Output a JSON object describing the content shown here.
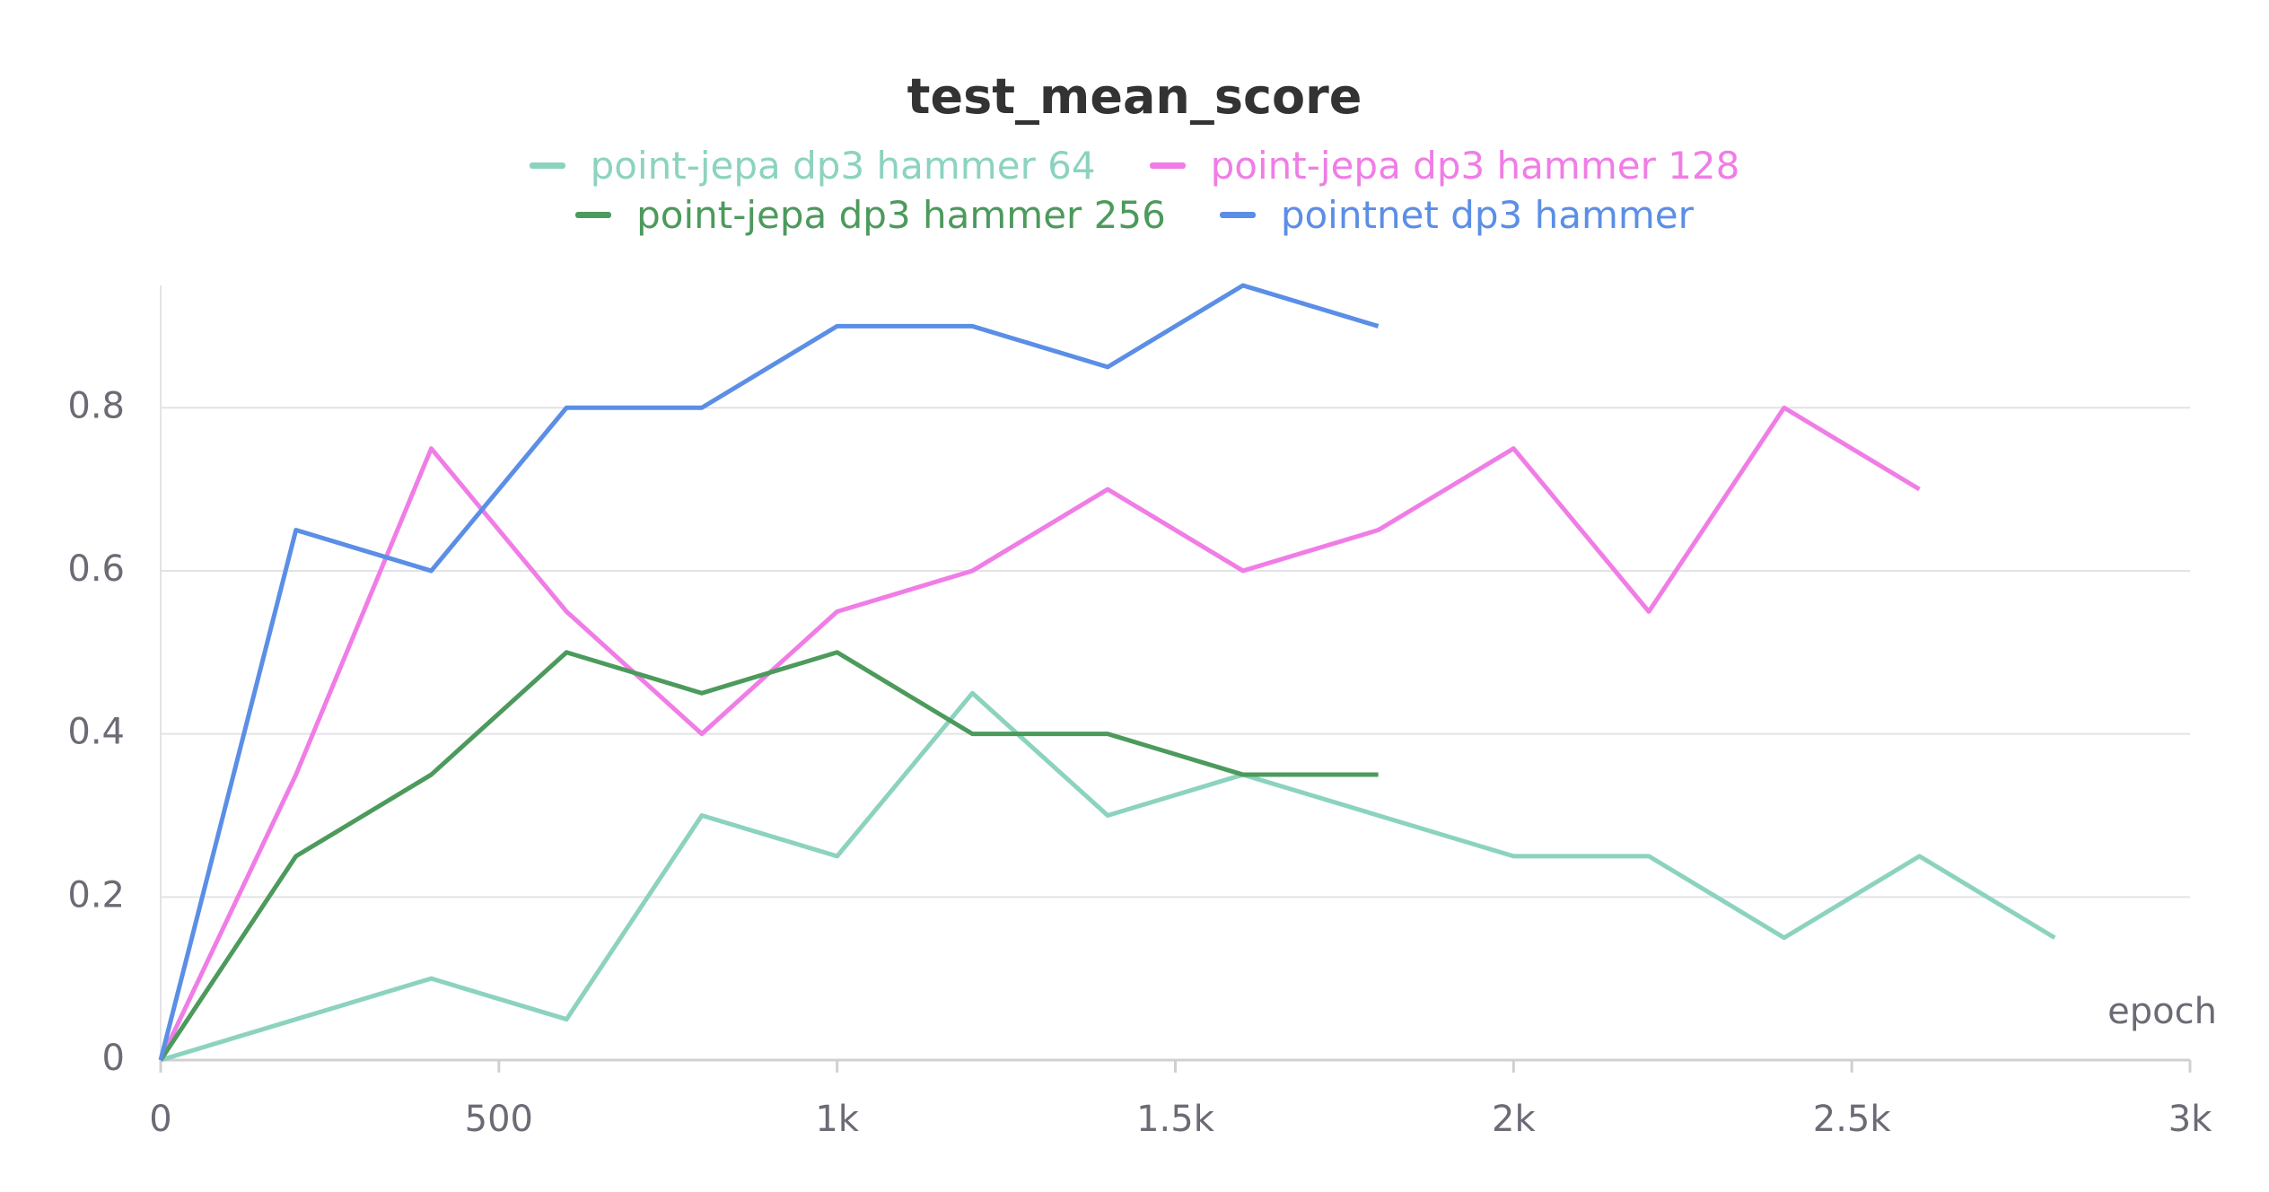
{
  "chart_data": {
    "type": "line",
    "title": "test_mean_score",
    "x_label": "epoch",
    "xlim": [
      0,
      3000
    ],
    "xticks": [
      0,
      500,
      {
        "value": 1000,
        "label": "1k"
      },
      {
        "value": 1500,
        "label": "1.5k"
      },
      {
        "value": 2000,
        "label": "2k"
      },
      {
        "value": 2500,
        "label": "2.5k"
      },
      {
        "value": 3000,
        "label": "3k"
      }
    ],
    "ylim": [
      0,
      0.95
    ],
    "yticks": [
      0,
      0.2,
      0.4,
      0.6,
      0.8
    ],
    "grid": true,
    "series": [
      {
        "name": "point-jepa dp3 hammer 64",
        "color": "#8cd3bf",
        "x": [
          0,
          200,
          400,
          600,
          800,
          1000,
          1200,
          1400,
          1600,
          1800,
          2000,
          2200,
          2400,
          2600,
          2800
        ],
        "values": [
          0,
          0.05,
          0.1,
          0.05,
          0.3,
          0.25,
          0.45,
          0.3,
          0.35,
          0.3,
          0.25,
          0.25,
          0.15,
          0.25,
          0.15
        ]
      },
      {
        "name": "point-jepa dp3 hammer 128",
        "color": "#f07de6",
        "x": [
          0,
          200,
          400,
          600,
          800,
          1000,
          1200,
          1400,
          1600,
          1800,
          2000,
          2200,
          2400,
          2600
        ],
        "values": [
          0,
          0.35,
          0.75,
          0.55,
          0.4,
          0.55,
          0.6,
          0.7,
          0.6,
          0.65,
          0.75,
          0.55,
          0.8,
          0.7
        ]
      },
      {
        "name": "point-jepa dp3 hammer 256",
        "color": "#4c9a5c",
        "x": [
          0,
          200,
          400,
          600,
          800,
          1000,
          1200,
          1400,
          1600,
          1800
        ],
        "values": [
          0,
          0.25,
          0.35,
          0.5,
          0.45,
          0.5,
          0.4,
          0.4,
          0.35,
          0.35
        ]
      },
      {
        "name": "pointnet dp3 hammer",
        "color": "#5b8ee6",
        "x": [
          0,
          200,
          400,
          600,
          800,
          1000,
          1200,
          1400,
          1600,
          1800
        ],
        "values": [
          0,
          0.65,
          0.6,
          0.8,
          0.8,
          0.9,
          0.9,
          0.85,
          0.95,
          0.9
        ]
      }
    ]
  }
}
